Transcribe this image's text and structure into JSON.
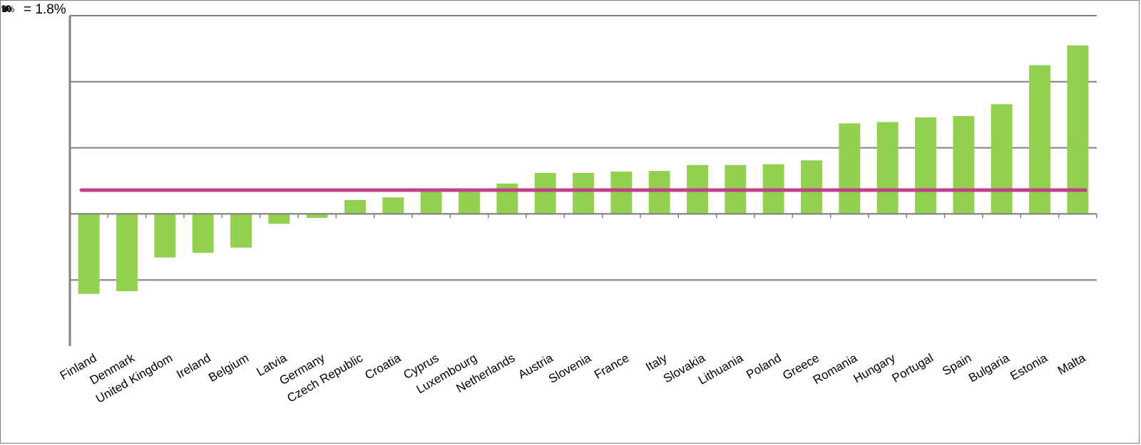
{
  "chart_data": {
    "type": "bar",
    "categories": [
      "Finland",
      "Denmark",
      "United Kingdom",
      "Ireland",
      "Belgium",
      "Latvia",
      "Germany",
      "Czech Republic",
      "Croatia",
      "Cyprus",
      "Luxembourg",
      "Netherlands",
      "Austria",
      "Slovenia",
      "France",
      "Italy",
      "Slovakia",
      "Lithuania",
      "Poland",
      "Greece",
      "Romania",
      "Hungary",
      "Portugal",
      "Spain",
      "Bulgaria",
      "Estonia",
      "Malta"
    ],
    "series": [
      {
        "values": [
          -12.1,
          -11.7,
          -6.6,
          -5.9,
          -5.1,
          -1.5,
          -0.6,
          2.1,
          2.5,
          3.5,
          3.5,
          4.6,
          6.2,
          6.2,
          6.4,
          6.5,
          7.4,
          7.4,
          7.5,
          8.1,
          13.7,
          13.9,
          14.6,
          14.8,
          16.6,
          22.5,
          25.5
        ]
      }
    ],
    "reference_line": {
      "value": 3.6
    },
    "ylim": [
      -20,
      30
    ],
    "y_gridlines": [
      -10,
      0,
      10,
      20,
      30
    ],
    "grid": true,
    "title": "",
    "xlabel": "",
    "ylabel": "",
    "top_label": "= 1.8%",
    "top_stack_labels": [
      "10",
      "20",
      "30",
      "0%",
      "%"
    ],
    "colors": {
      "bar": "#92d050",
      "reference_line": "#c0408a",
      "grid": "#808080",
      "axis": "#808080"
    }
  }
}
